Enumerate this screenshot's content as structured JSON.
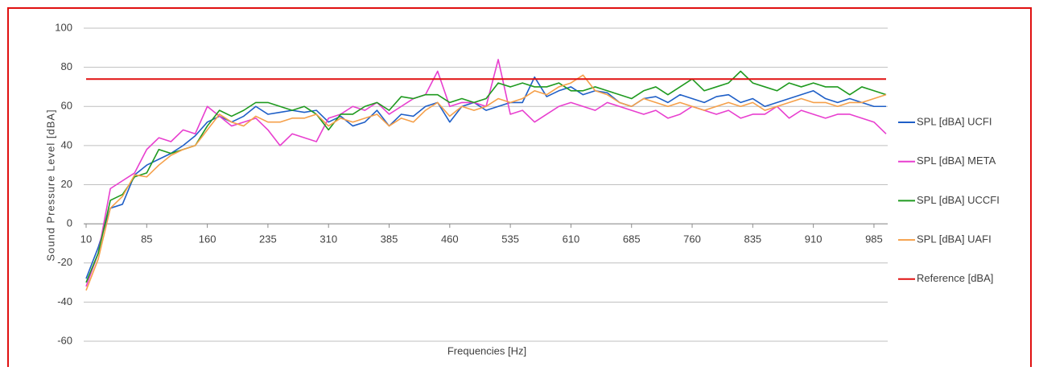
{
  "chart_data": {
    "type": "line",
    "x_label": "Frequencies [Hz]",
    "y_label": "Sound Pressure Level [dBA]",
    "x": [
      10,
      25,
      40,
      55,
      70,
      85,
      100,
      115,
      130,
      145,
      160,
      175,
      190,
      205,
      220,
      235,
      250,
      265,
      280,
      295,
      310,
      325,
      340,
      355,
      370,
      385,
      400,
      415,
      430,
      445,
      460,
      475,
      490,
      505,
      520,
      535,
      550,
      565,
      580,
      595,
      610,
      625,
      640,
      655,
      670,
      685,
      700,
      715,
      730,
      745,
      760,
      775,
      790,
      805,
      820,
      835,
      850,
      865,
      880,
      895,
      910,
      925,
      940,
      955,
      970,
      985,
      1000
    ],
    "xlim": [
      10,
      1000
    ],
    "xticks": [
      10,
      85,
      160,
      235,
      310,
      385,
      460,
      535,
      610,
      685,
      760,
      835,
      910,
      985
    ],
    "ylim": [
      -60,
      100
    ],
    "yticks": [
      -60,
      -40,
      -20,
      0,
      20,
      40,
      60,
      80,
      100
    ],
    "grid": true,
    "legend": "right",
    "series": [
      {
        "name": "SPL [dBA] UCFI",
        "color": "#1f5fc7",
        "values": [
          -28,
          -12,
          8,
          10,
          25,
          30,
          33,
          36,
          40,
          45,
          52,
          55,
          52,
          55,
          60,
          56,
          57,
          58,
          57,
          58,
          52,
          55,
          50,
          52,
          58,
          50,
          56,
          55,
          60,
          62,
          52,
          60,
          62,
          58,
          60,
          62,
          62,
          75,
          65,
          68,
          70,
          66,
          68,
          67,
          62,
          60,
          64,
          65,
          62,
          66,
          64,
          62,
          65,
          66,
          62,
          64,
          60,
          62,
          64,
          66,
          68,
          64,
          62,
          64,
          62,
          60,
          60
        ]
      },
      {
        "name": "SPL [dBA] META",
        "color": "#e83fcf",
        "values": [
          -32,
          -15,
          18,
          22,
          26,
          38,
          44,
          42,
          48,
          46,
          60,
          55,
          50,
          52,
          54,
          48,
          40,
          46,
          44,
          42,
          54,
          56,
          60,
          58,
          62,
          56,
          60,
          64,
          66,
          78,
          60,
          62,
          62,
          60,
          84,
          56,
          58,
          52,
          56,
          60,
          62,
          60,
          58,
          62,
          60,
          58,
          56,
          58,
          54,
          56,
          60,
          58,
          56,
          58,
          54,
          56,
          56,
          60,
          54,
          58,
          56,
          54,
          56,
          56,
          54,
          52,
          46
        ]
      },
      {
        "name": "SPL [dBA] UCCFI",
        "color": "#1f9a1f",
        "values": [
          -30,
          -15,
          12,
          15,
          24,
          26,
          38,
          36,
          38,
          40,
          50,
          58,
          55,
          58,
          62,
          62,
          60,
          58,
          60,
          56,
          48,
          56,
          56,
          60,
          62,
          58,
          65,
          64,
          66,
          66,
          62,
          64,
          62,
          64,
          72,
          70,
          72,
          70,
          70,
          72,
          68,
          68,
          70,
          68,
          66,
          64,
          68,
          70,
          66,
          70,
          74,
          68,
          70,
          72,
          78,
          72,
          70,
          68,
          72,
          70,
          72,
          70,
          70,
          66,
          70,
          68,
          66
        ]
      },
      {
        "name": "SPL [dBA] UAFI",
        "color": "#f5a04a",
        "values": [
          -34,
          -18,
          8,
          14,
          25,
          24,
          30,
          35,
          38,
          40,
          48,
          56,
          52,
          50,
          55,
          52,
          52,
          54,
          54,
          56,
          50,
          54,
          52,
          54,
          56,
          50,
          54,
          52,
          58,
          62,
          55,
          60,
          58,
          60,
          64,
          62,
          64,
          68,
          66,
          70,
          72,
          76,
          68,
          66,
          62,
          60,
          64,
          62,
          60,
          62,
          60,
          58,
          60,
          62,
          60,
          62,
          58,
          60,
          62,
          64,
          62,
          62,
          60,
          62,
          62,
          64,
          66
        ]
      },
      {
        "name": "Reference [dBA]",
        "color": "#e01010",
        "x": [
          10,
          1000
        ],
        "values": [
          74,
          74
        ]
      }
    ]
  }
}
